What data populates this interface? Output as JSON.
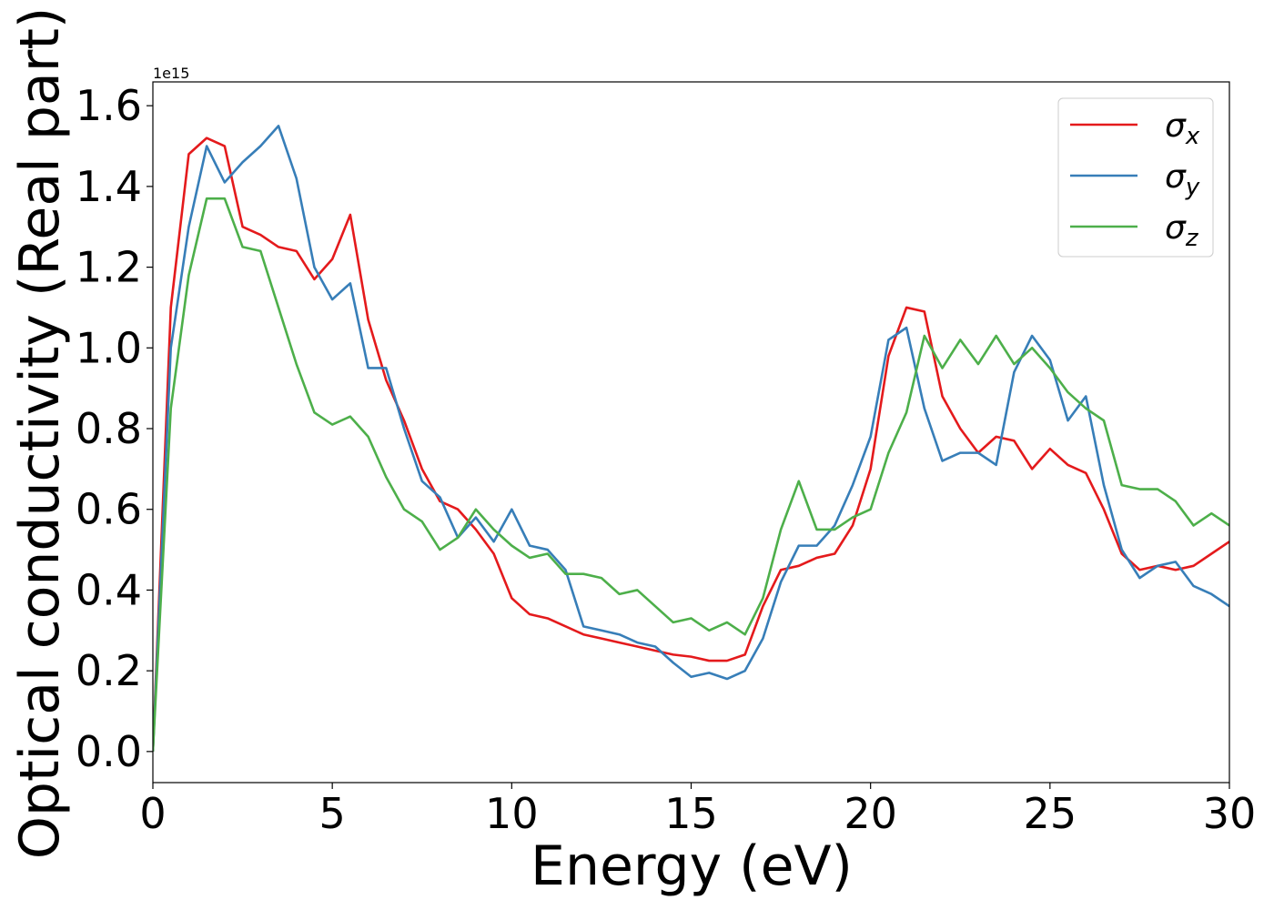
{
  "chart_data": {
    "type": "line",
    "xlabel": "Energy (eV)",
    "ylabel": "Optical conductivity (Real part)",
    "y_offset_label": "1e15",
    "x": [
      0,
      0.5,
      1,
      1.5,
      2,
      2.5,
      3,
      3.5,
      4,
      4.5,
      5,
      5.5,
      6,
      6.5,
      7,
      7.5,
      8,
      8.5,
      9,
      9.5,
      10,
      10.5,
      11,
      11.5,
      12,
      12.5,
      13,
      13.5,
      14,
      14.5,
      15,
      15.5,
      16,
      16.5,
      17,
      17.5,
      18,
      18.5,
      19,
      19.5,
      20,
      20.5,
      21,
      21.5,
      22,
      22.5,
      23,
      23.5,
      24,
      24.5,
      25,
      25.5,
      26,
      26.5,
      27,
      27.5,
      28,
      28.5,
      29,
      29.5,
      30
    ],
    "series": [
      {
        "name": "σx",
        "color": "#e41a1c",
        "values": [
          0.0,
          1.1,
          1.48,
          1.52,
          1.5,
          1.3,
          1.28,
          1.25,
          1.24,
          1.17,
          1.22,
          1.33,
          1.07,
          0.92,
          0.82,
          0.7,
          0.62,
          0.6,
          0.55,
          0.49,
          0.38,
          0.34,
          0.33,
          0.31,
          0.29,
          0.28,
          0.27,
          0.26,
          0.25,
          0.24,
          0.235,
          0.225,
          0.225,
          0.24,
          0.36,
          0.45,
          0.46,
          0.48,
          0.49,
          0.56,
          0.7,
          0.98,
          1.1,
          1.09,
          0.88,
          0.8,
          0.74,
          0.78,
          0.77,
          0.7,
          0.75,
          0.71,
          0.69,
          0.6,
          0.49,
          0.45,
          0.46,
          0.45,
          0.46,
          0.49,
          0.52
        ]
      },
      {
        "name": "σy",
        "color": "#377eb8",
        "values": [
          0.0,
          1.0,
          1.3,
          1.5,
          1.41,
          1.46,
          1.5,
          1.55,
          1.42,
          1.2,
          1.12,
          1.16,
          0.95,
          0.95,
          0.8,
          0.67,
          0.63,
          0.53,
          0.58,
          0.52,
          0.6,
          0.51,
          0.5,
          0.45,
          0.31,
          0.3,
          0.29,
          0.27,
          0.26,
          0.22,
          0.185,
          0.195,
          0.18,
          0.2,
          0.28,
          0.42,
          0.51,
          0.51,
          0.56,
          0.66,
          0.78,
          1.02,
          1.05,
          0.85,
          0.72,
          0.74,
          0.74,
          0.71,
          0.94,
          1.03,
          0.97,
          0.82,
          0.88,
          0.66,
          0.5,
          0.43,
          0.46,
          0.47,
          0.41,
          0.39,
          0.36
        ]
      },
      {
        "name": "σz",
        "color": "#4daf4a",
        "values": [
          0.0,
          0.85,
          1.18,
          1.37,
          1.37,
          1.25,
          1.24,
          1.1,
          0.96,
          0.84,
          0.81,
          0.83,
          0.78,
          0.68,
          0.6,
          0.57,
          0.5,
          0.53,
          0.6,
          0.55,
          0.51,
          0.48,
          0.49,
          0.44,
          0.44,
          0.43,
          0.39,
          0.4,
          0.36,
          0.32,
          0.33,
          0.3,
          0.32,
          0.29,
          0.38,
          0.55,
          0.67,
          0.55,
          0.55,
          0.58,
          0.6,
          0.74,
          0.84,
          1.03,
          0.95,
          1.02,
          0.96,
          1.03,
          0.96,
          1.0,
          0.95,
          0.89,
          0.85,
          0.82,
          0.66,
          0.65,
          0.65,
          0.62,
          0.56,
          0.59,
          0.56
        ]
      }
    ],
    "xlim": [
      0,
      30
    ],
    "xticks": [
      0,
      5,
      10,
      15,
      20,
      25,
      30
    ],
    "ylim": [
      -0.077,
      1.659
    ],
    "yticks": [
      {
        "value": 0,
        "label": "0.0"
      },
      0.2,
      0.4,
      0.6,
      0.8,
      {
        "value": 1,
        "label": "1.0"
      },
      1.2,
      1.4,
      1.6
    ],
    "grid": false,
    "legend": "upper right"
  }
}
